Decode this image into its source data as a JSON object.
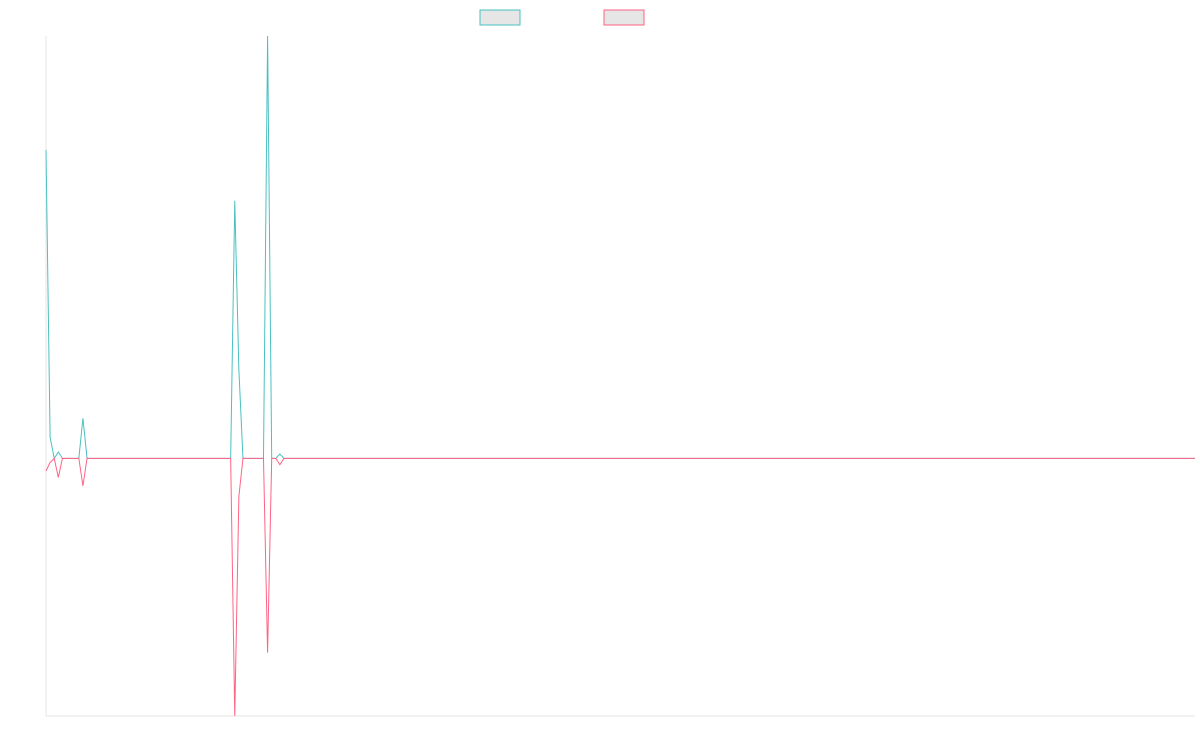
{
  "chart_data": {
    "type": "line",
    "x": [
      0,
      1,
      2,
      3,
      4,
      8,
      9,
      10,
      45,
      46,
      47,
      48,
      53,
      54,
      55,
      56,
      57,
      58,
      280
    ],
    "xlim": [
      0,
      280
    ],
    "ylim": [
      -6.1,
      10
    ],
    "legend": "top",
    "series": [
      {
        "color": "#4bc0c0",
        "values": [
          7.3,
          0.5,
          0,
          0.15,
          0,
          0,
          0.95,
          0,
          0,
          6.1,
          2.1,
          0,
          0,
          10,
          0,
          0,
          0.1,
          0,
          0
        ]
      },
      {
        "color": "#ff6384",
        "values": [
          -0.3,
          -0.1,
          0,
          -0.45,
          0,
          0,
          -0.65,
          0,
          0,
          -6.1,
          -0.9,
          0,
          0,
          -4.6,
          0,
          0,
          -0.15,
          0,
          0
        ]
      }
    ]
  }
}
